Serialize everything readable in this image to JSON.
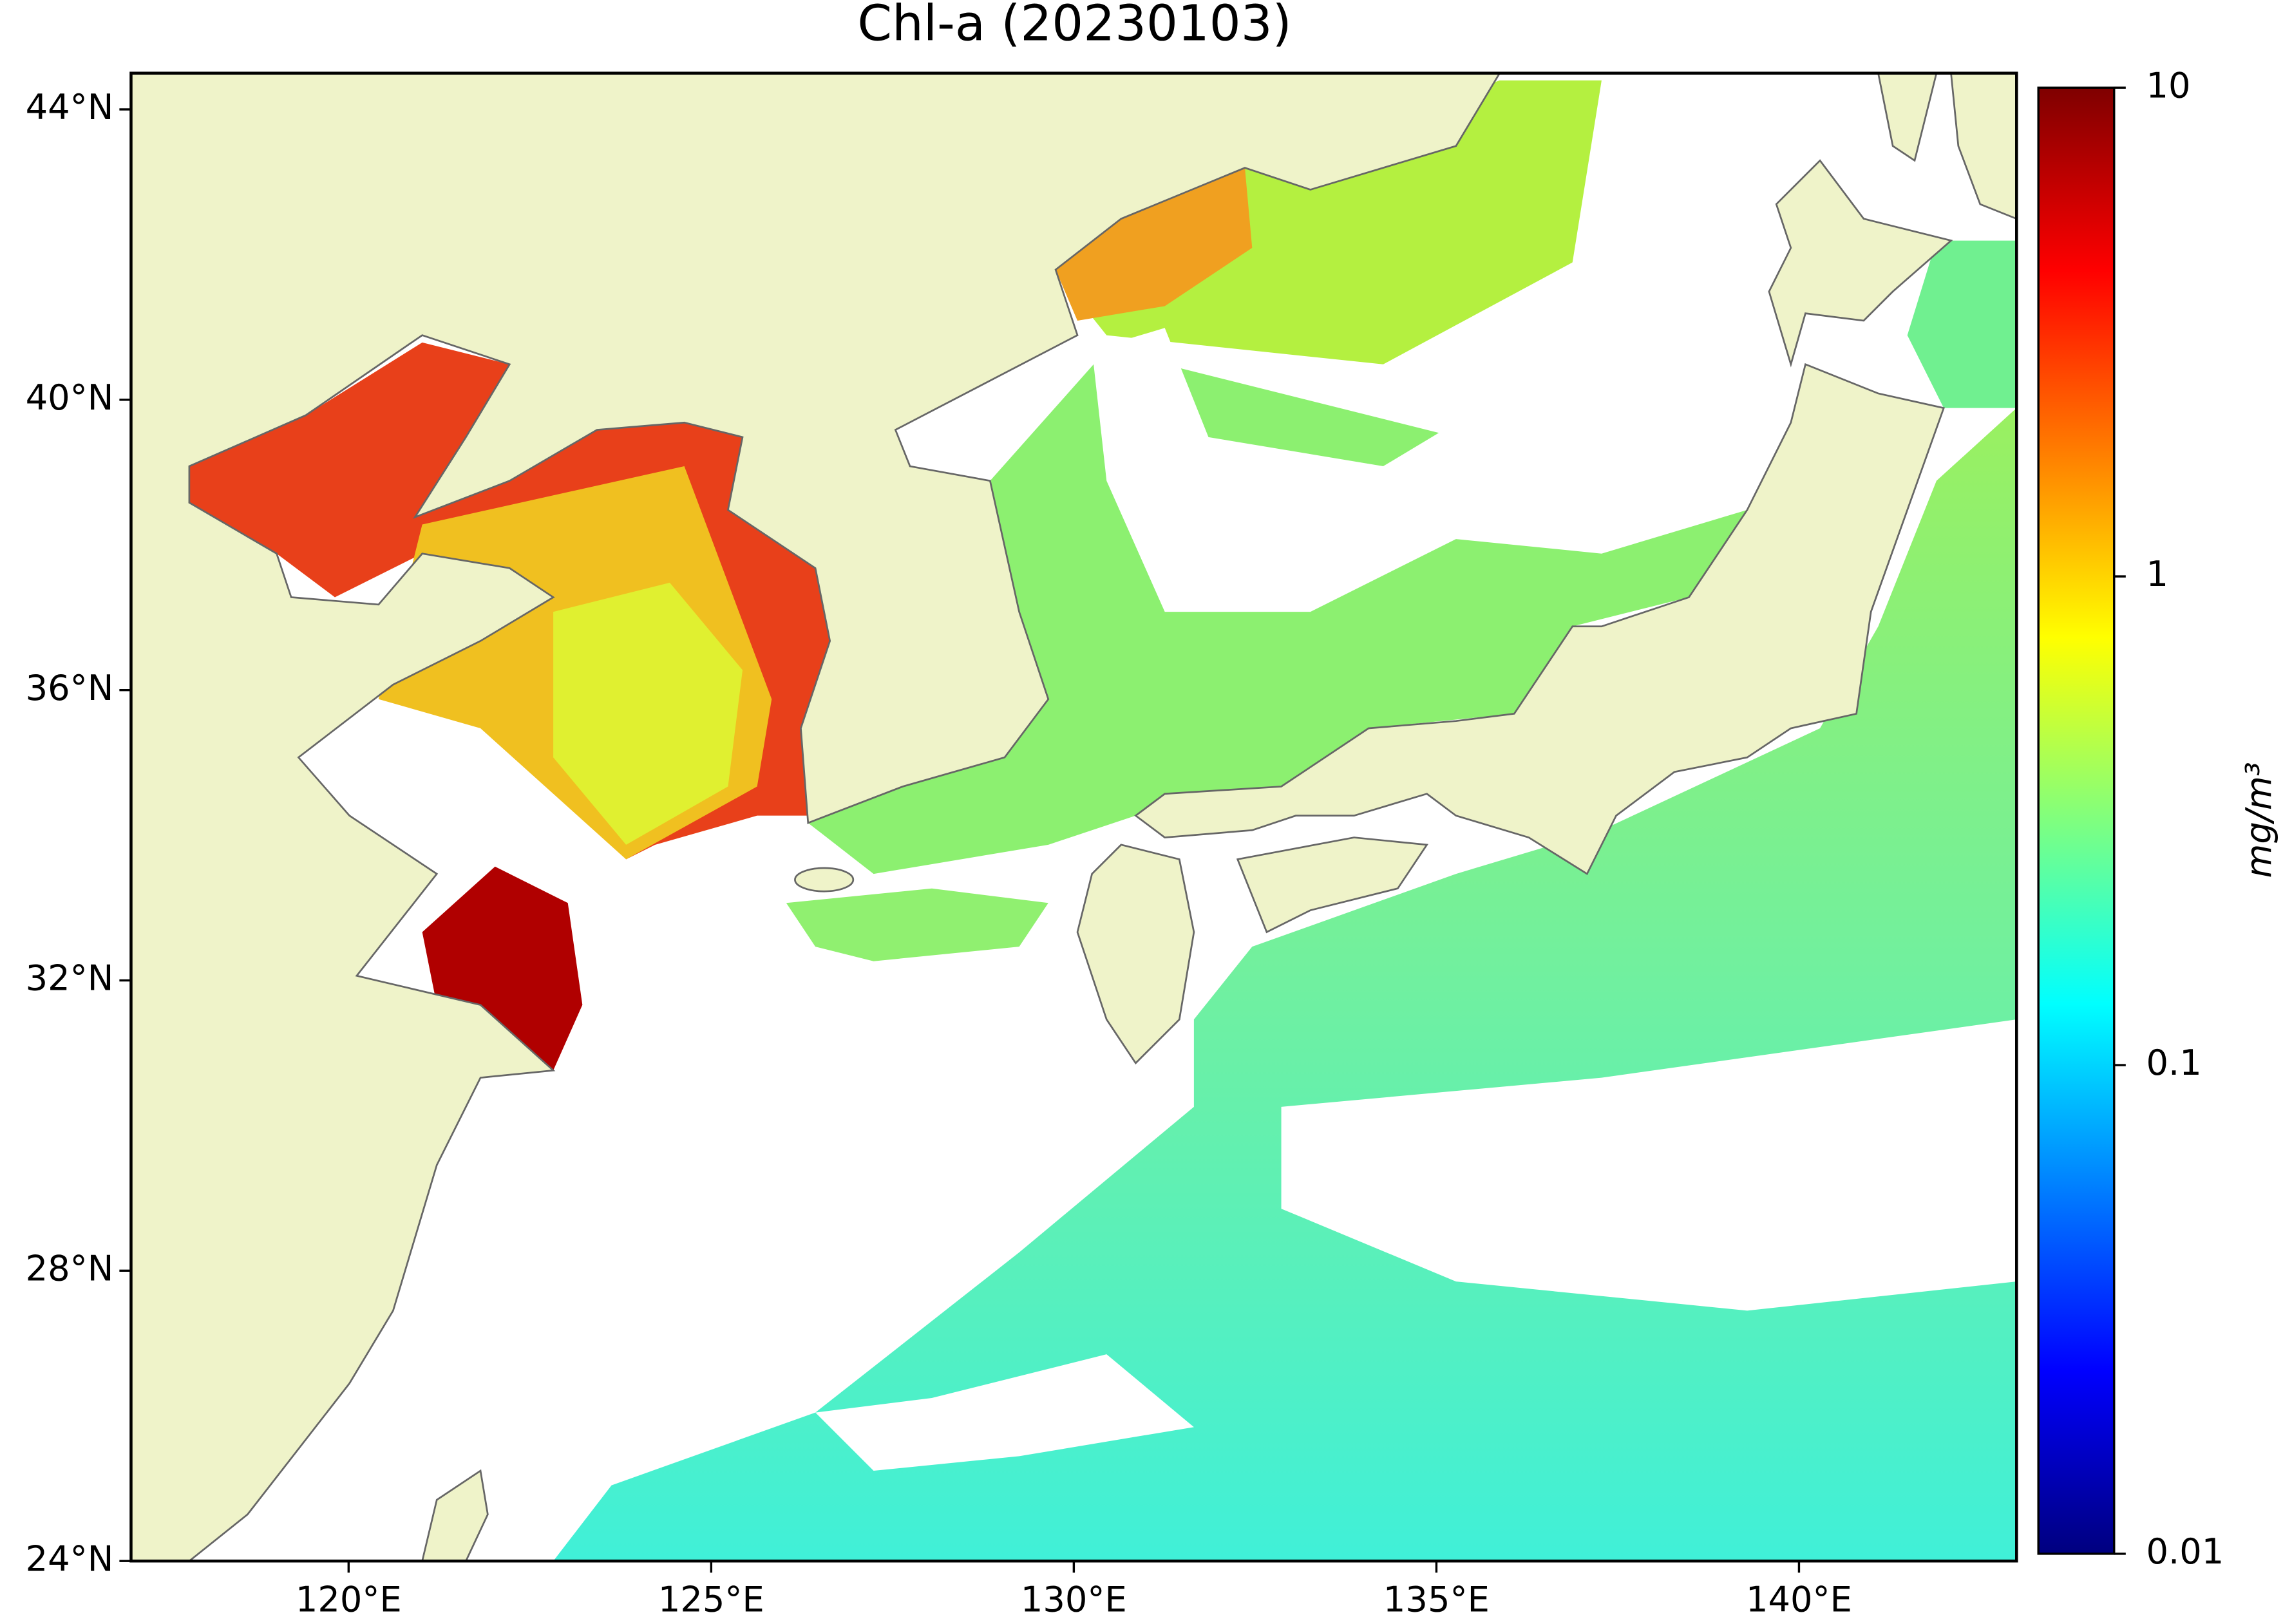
{
  "chart_data": {
    "type": "map",
    "title": "Chl-a (20230103)",
    "xlim": [
      117,
      143
    ],
    "ylim": [
      24,
      44.5
    ],
    "xticks": [
      {
        "value": 120,
        "label": "120°E"
      },
      {
        "value": 125,
        "label": "125°E"
      },
      {
        "value": 130,
        "label": "130°E"
      },
      {
        "value": 135,
        "label": "135°E"
      },
      {
        "value": 140,
        "label": "140°E"
      }
    ],
    "yticks": [
      {
        "value": 24,
        "label": "24°N"
      },
      {
        "value": 28,
        "label": "28°N"
      },
      {
        "value": 32,
        "label": "32°N"
      },
      {
        "value": 36,
        "label": "36°N"
      },
      {
        "value": 40,
        "label": "40°N"
      },
      {
        "value": 44,
        "label": "44°N"
      }
    ],
    "colorbar": {
      "label": "mg/m³",
      "scale": "log",
      "colormap": "jet",
      "clim": [
        0.01,
        10
      ],
      "ticks": [
        0.01,
        0.1,
        1,
        10
      ]
    },
    "land_color": "#eff3c9"
  }
}
